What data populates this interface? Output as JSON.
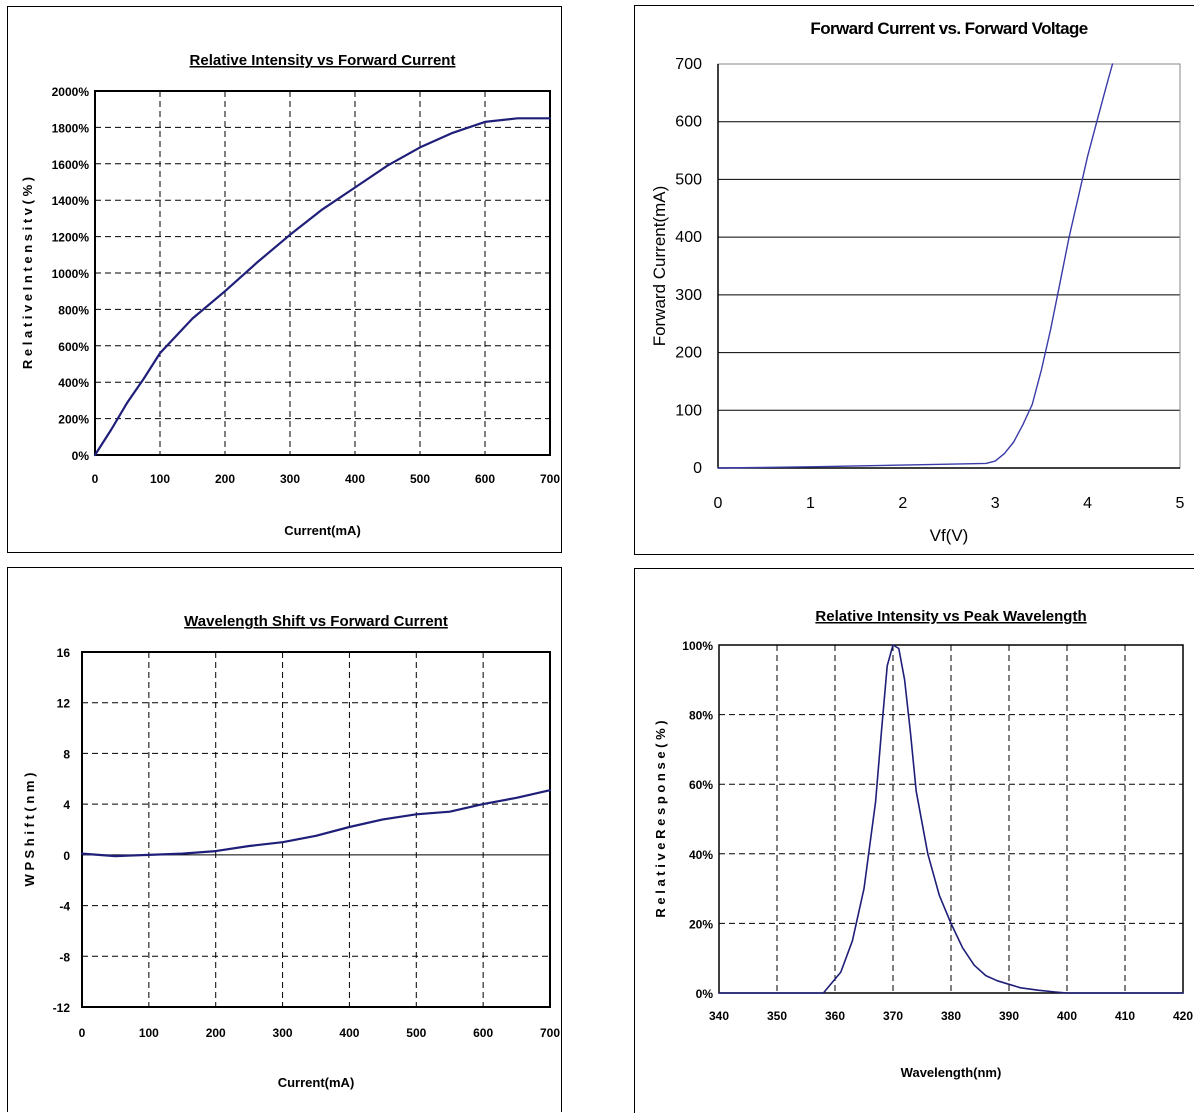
{
  "chart_data": [
    {
      "id": "relative-intensity-vs-current",
      "type": "line",
      "title": "Relative Intensity vs Forward Current",
      "xlabel": "Current(mA)",
      "ylabel": "R e l a t i v e   I n t e n s i t v ( % )",
      "xlim": [
        0,
        700
      ],
      "ylim": [
        0,
        2000
      ],
      "x_ticks": [
        "0",
        "100",
        "200",
        "300",
        "400",
        "500",
        "600",
        "700"
      ],
      "y_ticks": [
        "0%",
        "200%",
        "400%",
        "600%",
        "800%",
        "1000%",
        "1200%",
        "1400%",
        "1600%",
        "1800%",
        "2000%"
      ],
      "grid": "dashed",
      "series": [
        {
          "color": "#1f1f7a",
          "x": [
            0,
            25,
            50,
            75,
            100,
            150,
            200,
            250,
            300,
            350,
            400,
            450,
            500,
            550,
            600,
            650,
            700
          ],
          "y": [
            0,
            140,
            290,
            420,
            560,
            750,
            900,
            1060,
            1210,
            1350,
            1470,
            1590,
            1690,
            1770,
            1830,
            1850,
            1850
          ]
        }
      ]
    },
    {
      "id": "forward-current-vs-voltage",
      "type": "line",
      "title": "Forward Current vs. Forward Voltage",
      "xlabel": "Vf(V)",
      "ylabel": "Forward Current(mA)",
      "xlim": [
        0,
        5
      ],
      "ylim": [
        0,
        700
      ],
      "x_ticks": [
        "0",
        "1",
        "2",
        "3",
        "4",
        "5"
      ],
      "y_ticks": [
        "0",
        "100",
        "200",
        "300",
        "400",
        "500",
        "600",
        "700"
      ],
      "grid": "horizontal-solid",
      "series": [
        {
          "color": "#3a3aa8",
          "x": [
            0,
            1,
            2,
            2.9,
            3.0,
            3.1,
            3.2,
            3.3,
            3.4,
            3.5,
            3.6,
            3.7,
            3.8,
            3.9,
            4.0,
            4.1,
            4.2,
            4.27
          ],
          "y": [
            0,
            2,
            5,
            8,
            12,
            25,
            45,
            75,
            110,
            170,
            240,
            320,
            400,
            470,
            540,
            600,
            660,
            700
          ]
        }
      ]
    },
    {
      "id": "wavelength-shift-vs-current",
      "type": "line",
      "title": "Wavelength Shift vs Forward Current",
      "xlabel": "Current(mA)",
      "ylabel": "W P  S h i f t ( n m )",
      "xlim": [
        0,
        700
      ],
      "ylim": [
        -12,
        16
      ],
      "x_ticks": [
        "0",
        "100",
        "200",
        "300",
        "400",
        "500",
        "600",
        "700"
      ],
      "y_ticks": [
        "-12",
        "-8",
        "-4",
        "0",
        "4",
        "8",
        "12",
        "16"
      ],
      "grid": "dashed",
      "series": [
        {
          "color": "#1f1f7a",
          "x": [
            0,
            50,
            100,
            150,
            200,
            250,
            300,
            350,
            400,
            450,
            500,
            550,
            600,
            650,
            700
          ],
          "y": [
            0.1,
            -0.1,
            0,
            0.1,
            0.3,
            0.7,
            1.0,
            1.5,
            2.2,
            2.8,
            3.2,
            3.4,
            4.0,
            4.5,
            5.1
          ]
        }
      ]
    },
    {
      "id": "relative-intensity-vs-wavelength",
      "type": "line",
      "title": "Relative Intensity vs Peak Wavelength",
      "xlabel": "Wavelength(nm)",
      "ylabel": "R e l a t i v e   R e s p o n s e ( % )",
      "xlim": [
        340,
        420
      ],
      "ylim": [
        0,
        100
      ],
      "x_ticks": [
        "340",
        "350",
        "360",
        "370",
        "380",
        "390",
        "400",
        "410",
        "420"
      ],
      "y_ticks": [
        "0%",
        "20%",
        "40%",
        "60%",
        "80%",
        "100%"
      ],
      "grid": "dashed",
      "series": [
        {
          "color": "#1f1f7a",
          "x": [
            340,
            358,
            359,
            361,
            363,
            365,
            367,
            368,
            369,
            370,
            371,
            372,
            373,
            374,
            376,
            378,
            380,
            382,
            384,
            386,
            388,
            390,
            392,
            395,
            398,
            400,
            420
          ],
          "y": [
            0,
            0,
            2,
            6,
            15,
            30,
            55,
            75,
            94,
            100,
            99,
            90,
            75,
            58,
            40,
            28,
            20,
            13,
            8,
            5,
            3.5,
            2.5,
            1.5,
            0.8,
            0.3,
            0,
            0
          ]
        }
      ]
    }
  ]
}
